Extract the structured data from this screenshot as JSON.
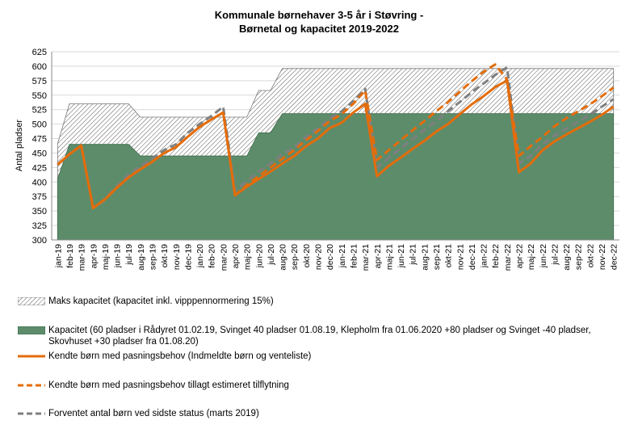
{
  "chart_data": {
    "type": "area",
    "title_lines": [
      "Kommunale børnehaver 3-5 år i Støvring -",
      "Børnetal og kapacitet 2019-2022"
    ],
    "ylabel": "Antal pladser",
    "ylim": [
      300,
      625
    ],
    "yticks": [
      "300",
      "325",
      "350",
      "375",
      "400",
      "425",
      "450",
      "475",
      "500",
      "525",
      "550",
      "575",
      "600",
      "625"
    ],
    "categories": [
      "jan-19",
      "feb-19",
      "mar-19",
      "apr-19",
      "maj-19",
      "jun-19",
      "jul-19",
      "aug-19",
      "sep-19",
      "okt-19",
      "nov-19",
      "dec-19",
      "jan-20",
      "feb-20",
      "mar-20",
      "apr-20",
      "maj-20",
      "jun-20",
      "jul-20",
      "aug-20",
      "sep-20",
      "okt-20",
      "nov-20",
      "dec-20",
      "jan-21",
      "feb-21",
      "mar-21",
      "apr-21",
      "maj-21",
      "jun-21",
      "jul-21",
      "aug-21",
      "sep-21",
      "okt-21",
      "nov-21",
      "dec-21",
      "jan-22",
      "feb-22",
      "mar-22",
      "apr-22",
      "maj-22",
      "jun-22",
      "jul-22",
      "aug-22",
      "sep-22",
      "okt-22",
      "nov-22",
      "dec-22"
    ],
    "series": [
      {
        "name": "Maks kapacitet (kapacitet inkl. vipppennormering 15%)",
        "kind": "hatched-area",
        "color": "#ffffff",
        "values": [
          466,
          535,
          535,
          535,
          535,
          535,
          535,
          512,
          512,
          512,
          512,
          512,
          512,
          512,
          512,
          512,
          512,
          558,
          558,
          596,
          596,
          596,
          596,
          596,
          596,
          596,
          596,
          596,
          596,
          596,
          596,
          596,
          596,
          596,
          596,
          596,
          596,
          596,
          596,
          596,
          596,
          596,
          596,
          596,
          596,
          596,
          596,
          596
        ]
      },
      {
        "name": "Kapacitet (60 pladser i Rådyret 01.02.19, Svinget 40 pladser 01.08.19, Klepholm fra 01.06.2020 +80 pladser og Svinget -40 pladser, Skovhuset +30 pladser fra 01.08.20)",
        "kind": "area",
        "color": "#5d8c6b",
        "values": [
          405,
          465,
          465,
          465,
          465,
          465,
          465,
          445,
          445,
          445,
          445,
          445,
          445,
          445,
          445,
          445,
          445,
          485,
          485,
          518,
          518,
          518,
          518,
          518,
          518,
          518,
          518,
          518,
          518,
          518,
          518,
          518,
          518,
          518,
          518,
          518,
          518,
          518,
          518,
          518,
          518,
          518,
          518,
          518,
          518,
          518,
          518,
          518
        ]
      },
      {
        "name": "Kendte børn med pasningsbehov (Indmeldte børn og venteliste)",
        "kind": "line",
        "style": "solid",
        "color": "#e46c0a",
        "values": [
          430,
          448,
          463,
          355,
          370,
          390,
          408,
          422,
          435,
          450,
          460,
          478,
          495,
          508,
          520,
          377,
          392,
          405,
          418,
          432,
          445,
          462,
          475,
          493,
          502,
          520,
          535,
          410,
          428,
          442,
          457,
          471,
          487,
          500,
          517,
          534,
          548,
          564,
          575,
          417,
          432,
          455,
          470,
          482,
          493,
          504,
          516,
          530
        ]
      },
      {
        "name": "Kendte børn med pasningsbehov tillagt estimeret tilflytning",
        "kind": "line",
        "style": "dashed",
        "color": "#e46c0a",
        "values": [
          430,
          448,
          463,
          355,
          370,
          390,
          408,
          422,
          435,
          450,
          460,
          478,
          495,
          508,
          520,
          377,
          395,
          410,
          425,
          440,
          455,
          472,
          488,
          505,
          517,
          535,
          558,
          438,
          455,
          472,
          489,
          505,
          522,
          538,
          556,
          574,
          590,
          603,
          577,
          445,
          462,
          478,
          496,
          510,
          522,
          534,
          548,
          563
        ]
      },
      {
        "name": "Forventet antal børn ved sidste status (marts 2019)",
        "kind": "line",
        "style": "dashed",
        "color": "#7f7f7f",
        "values": [
          430,
          448,
          462,
          355,
          370,
          393,
          413,
          427,
          441,
          455,
          465,
          485,
          500,
          514,
          530,
          385,
          402,
          418,
          432,
          448,
          460,
          478,
          492,
          510,
          522,
          540,
          561,
          425,
          442,
          458,
          474,
          490,
          505,
          522,
          538,
          555,
          570,
          585,
          598,
          432,
          445,
          465,
          480,
          492,
          504,
          516,
          530,
          543
        ]
      }
    ]
  },
  "legend": [
    {
      "label": "Maks kapacitet (kapacitet inkl. vipppennormering 15%)"
    },
    {
      "label": "Kapacitet (60 pladser i Rådyret 01.02.19, Svinget 40 pladser 01.08.19, Klepholm fra 01.06.2020 +80 pladser og Svinget -40 pladser, Skovhuset +30 pladser fra 01.08.20)"
    },
    {
      "label": "Kendte børn med pasningsbehov (Indmeldte børn og venteliste)"
    },
    {
      "label": "Kendte børn med pasningsbehov tillagt estimeret tilflytning"
    },
    {
      "label": "Forventet antal børn ved sidste status (marts 2019)"
    }
  ]
}
